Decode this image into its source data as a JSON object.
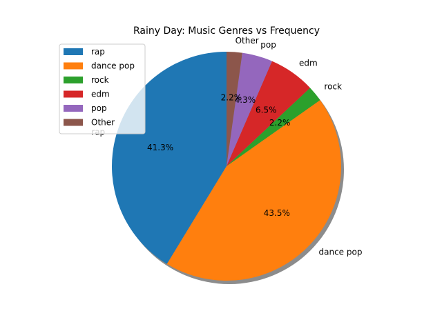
{
  "chart_data": {
    "type": "pie",
    "title": "Rainy Day: Music Genres vs Frequency",
    "categories": [
      "rap",
      "dance pop",
      "rock",
      "edm",
      "pop",
      "Other"
    ],
    "values": [
      41.3,
      43.5,
      2.2,
      6.5,
      4.3,
      2.2
    ],
    "percent_labels": [
      "41.3%",
      "43.5%",
      "2.2%",
      "6.5%",
      "4.3%",
      "2.2%"
    ],
    "colors": [
      "#1f77b4",
      "#ff7f0e",
      "#2ca02c",
      "#d62728",
      "#9467bd",
      "#8c564b"
    ],
    "start_angle_deg": 90,
    "direction": "counterclockwise",
    "shadow": true,
    "legend": "upper-left"
  }
}
